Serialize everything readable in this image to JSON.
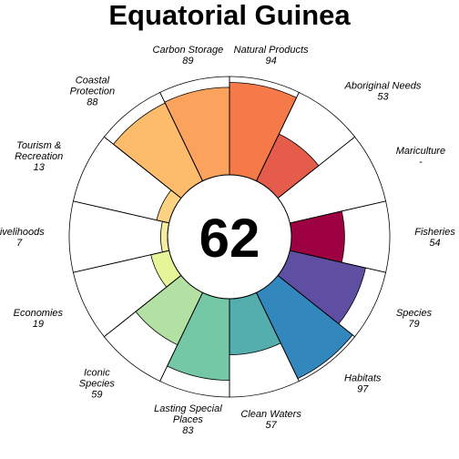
{
  "chart_data": {
    "type": "flower",
    "title": "Equatorial Guinea",
    "center_score": "62",
    "max": 100,
    "petals": [
      {
        "name": "Fisheries",
        "lines": [
          "Fisheries"
        ],
        "value": 54,
        "value_text": "54",
        "color": "#9E0142"
      },
      {
        "name": "Mariculture",
        "lines": [
          "Mariculture"
        ],
        "value": null,
        "value_text": "-",
        "color": "#D53E4F"
      },
      {
        "name": "Aboriginal Needs",
        "lines": [
          "Aboriginal Needs"
        ],
        "value": 53,
        "value_text": "53",
        "color": "#E55C4B"
      },
      {
        "name": "Natural Products",
        "lines": [
          "Natural Products"
        ],
        "value": 94,
        "value_text": "94",
        "color": "#F67A49"
      },
      {
        "name": "Carbon Storage",
        "lines": [
          "Carbon Storage"
        ],
        "value": 89,
        "value_text": "89",
        "color": "#FBA35C"
      },
      {
        "name": "Coastal Protection",
        "lines": [
          "Coastal",
          "Protection"
        ],
        "value": 88,
        "value_text": "88",
        "color": "#FDBB6C"
      },
      {
        "name": "Tourism & Recreation",
        "lines": [
          "Tourism &",
          "Recreation"
        ],
        "value": 13,
        "value_text": "13",
        "color": "#FDD383"
      },
      {
        "name": "Livelihoods",
        "lines": [
          "Livelihoods"
        ],
        "value": 7,
        "value_text": "7",
        "color": "#F6EE9F"
      },
      {
        "name": "Economies",
        "lines": [
          "Economies"
        ],
        "value": 19,
        "value_text": "19",
        "color": "#E6F598"
      },
      {
        "name": "Iconic Species",
        "lines": [
          "Iconic",
          "Species"
        ],
        "value": 59,
        "value_text": "59",
        "color": "#B3E0A3"
      },
      {
        "name": "Lasting Special Places",
        "lines": [
          "Lasting Special",
          "Places"
        ],
        "value": 83,
        "value_text": "83",
        "color": "#74C8A5"
      },
      {
        "name": "Clean Waters",
        "lines": [
          "Clean Waters"
        ],
        "value": 57,
        "value_text": "57",
        "color": "#54AEAD"
      },
      {
        "name": "Habitats",
        "lines": [
          "Habitats"
        ],
        "value": 97,
        "value_text": "97",
        "color": "#3288BD"
      },
      {
        "name": "Species",
        "lines": [
          "Species"
        ],
        "value": 79,
        "value_text": "79",
        "color": "#5E4FA2"
      }
    ]
  }
}
